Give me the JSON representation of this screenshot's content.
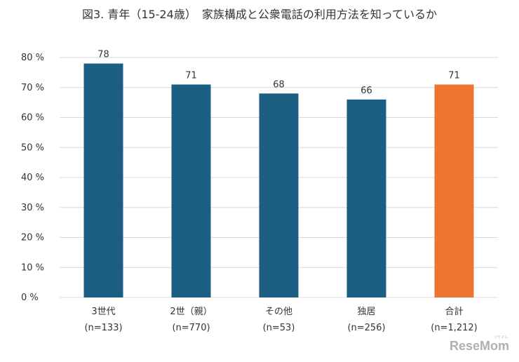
{
  "chart_data": {
    "type": "bar",
    "title": "図3. 青年（15-24歳）　家族構成と公衆電話の利用方法を知っているか",
    "categories": [
      "3世代",
      "2世（親）",
      "その他",
      "独居",
      "合計"
    ],
    "sample_sizes": [
      "(n=133)",
      "(n=770)",
      "(n=53)",
      "(n=256)",
      "(n=1,212)"
    ],
    "values": [
      78,
      71,
      68,
      66,
      71
    ],
    "data_labels": [
      "78",
      "71",
      "68",
      "66",
      "71"
    ],
    "colors": [
      "#1b5e82",
      "#1b5e82",
      "#1b5e82",
      "#1b5e82",
      "#ed7532"
    ],
    "y_tick_labels": [
      "0 %",
      "10 %",
      "20 %",
      "30 %",
      "40 %",
      "50 %",
      "60 %",
      "70 %",
      "80 %"
    ],
    "ylim": [
      0,
      80
    ],
    "grid": true,
    "legend": "none"
  },
  "watermark": {
    "text": "ReseMom",
    "small_text": "リセマム"
  }
}
